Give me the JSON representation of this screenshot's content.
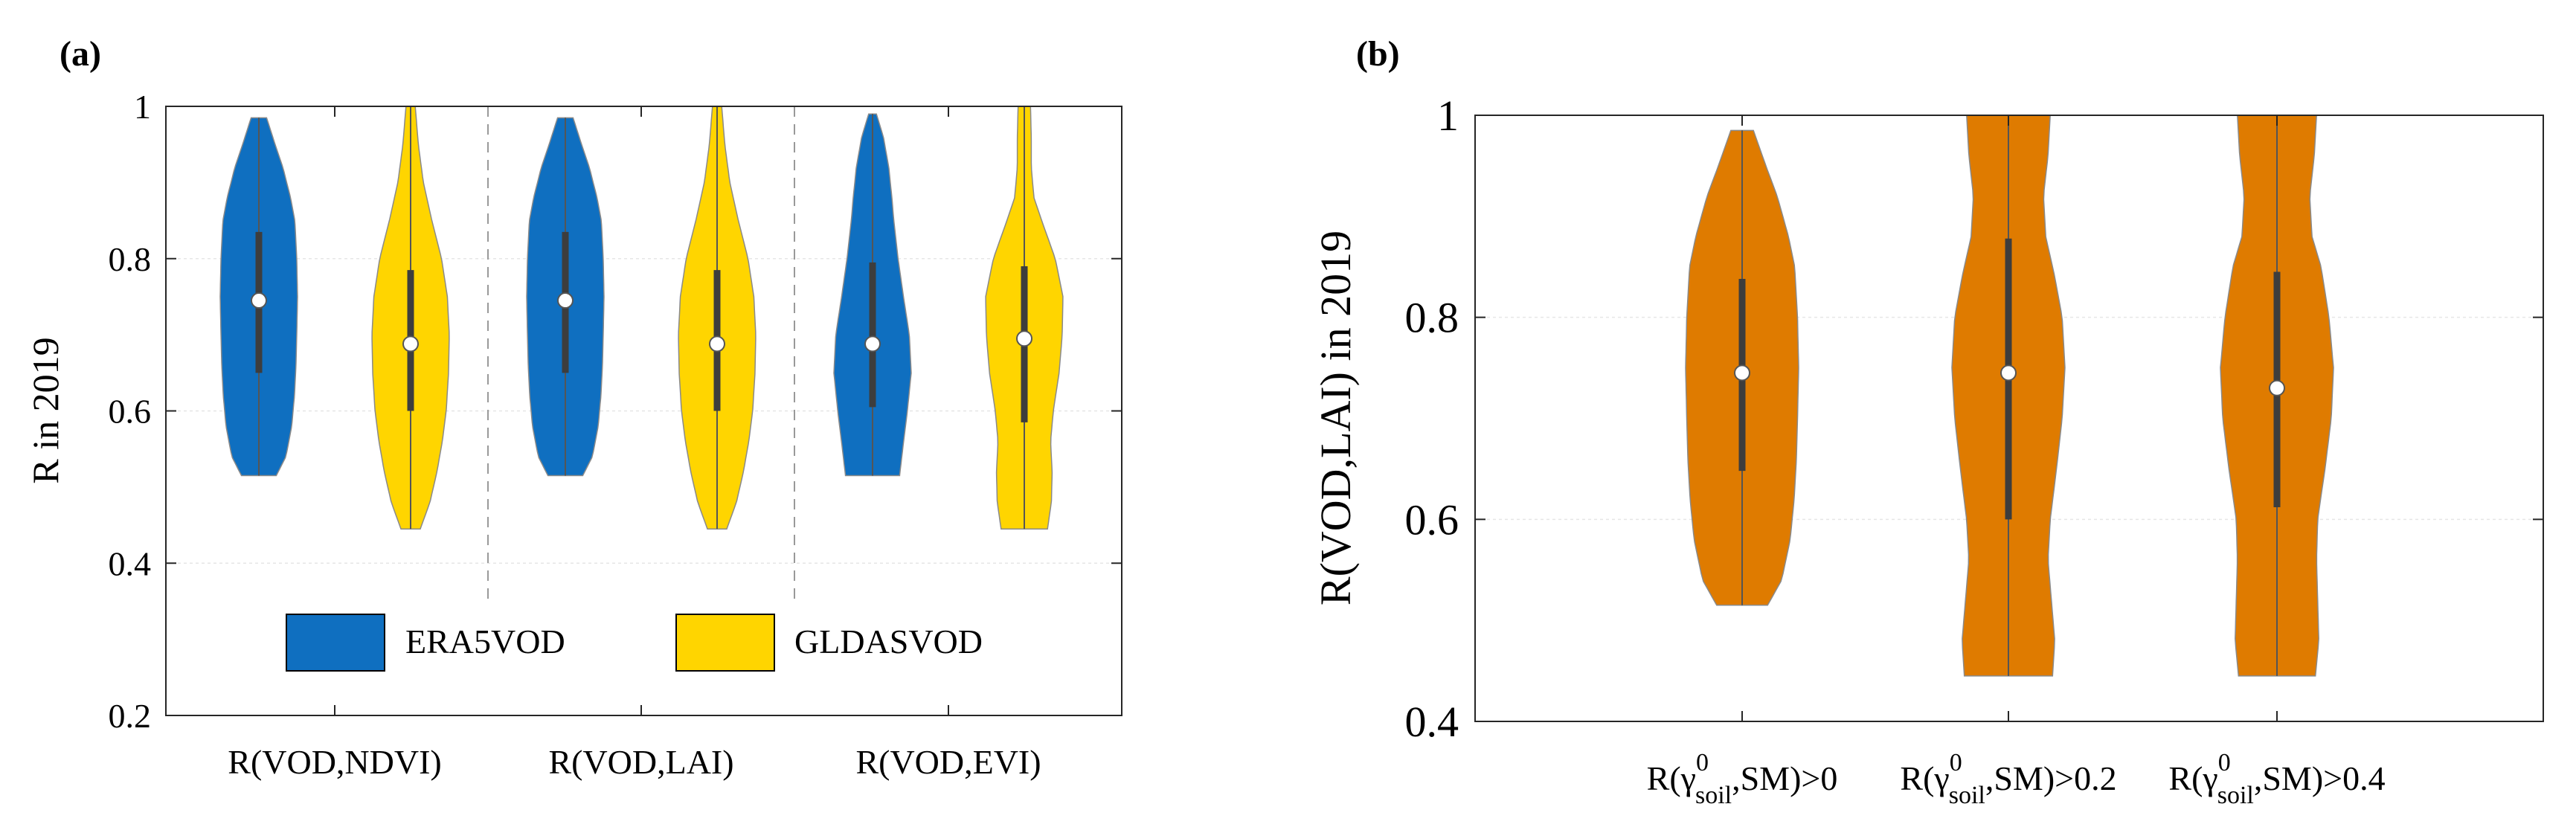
{
  "colors": {
    "era5": "#0f6fc0",
    "gldas": "#ffd500",
    "orange": "#df7b00",
    "box": "#3d3d3d",
    "median_dot": "#ffffff",
    "grid": "#e6e6e6",
    "axis": "#262626"
  },
  "chart_data": [
    {
      "panel_label": "(a)",
      "type": "violin",
      "ylabel": "R in 2019",
      "ylim": [
        0.2,
        1.0
      ],
      "yticks": [
        "0.2",
        "0.4",
        "0.6",
        "0.8",
        "1"
      ],
      "groups": [
        "R(VOD,NDVI)",
        "R(VOD,LAI)",
        "R(VOD,EVI)"
      ],
      "legend": [
        "ERA5VOD",
        "GLDASVOD"
      ],
      "legend_position": "bottom-center",
      "series": [
        {
          "name": "ERA5VOD",
          "violins": [
            {
              "min": 0.515,
              "q1": 0.65,
              "median": 0.745,
              "q3": 0.835,
              "max": 0.985,
              "shape": [
                [
                  0.515,
                  0.45
                ],
                [
                  0.54,
                  0.7
                ],
                [
                  0.58,
                  0.85
                ],
                [
                  0.62,
                  0.92
                ],
                [
                  0.66,
                  0.96
                ],
                [
                  0.7,
                  0.98
                ],
                [
                  0.75,
                  1.0
                ],
                [
                  0.8,
                  0.98
                ],
                [
                  0.85,
                  0.93
                ],
                [
                  0.88,
                  0.82
                ],
                [
                  0.92,
                  0.62
                ],
                [
                  0.95,
                  0.42
                ],
                [
                  0.985,
                  0.2
                ]
              ]
            },
            {
              "min": 0.515,
              "q1": 0.65,
              "median": 0.745,
              "q3": 0.835,
              "max": 0.985,
              "shape": [
                [
                  0.515,
                  0.45
                ],
                [
                  0.54,
                  0.7
                ],
                [
                  0.58,
                  0.85
                ],
                [
                  0.62,
                  0.92
                ],
                [
                  0.66,
                  0.96
                ],
                [
                  0.7,
                  0.98
                ],
                [
                  0.75,
                  1.0
                ],
                [
                  0.8,
                  0.98
                ],
                [
                  0.85,
                  0.93
                ],
                [
                  0.88,
                  0.82
                ],
                [
                  0.92,
                  0.62
                ],
                [
                  0.95,
                  0.42
                ],
                [
                  0.985,
                  0.2
                ]
              ]
            },
            {
              "min": 0.515,
              "q1": 0.605,
              "median": 0.688,
              "q3": 0.795,
              "max": 0.99,
              "shape": [
                [
                  0.515,
                  0.7
                ],
                [
                  0.55,
                  0.78
                ],
                [
                  0.6,
                  0.9
                ],
                [
                  0.65,
                  1.0
                ],
                [
                  0.7,
                  0.95
                ],
                [
                  0.75,
                  0.8
                ],
                [
                  0.8,
                  0.66
                ],
                [
                  0.85,
                  0.55
                ],
                [
                  0.88,
                  0.5
                ],
                [
                  0.92,
                  0.42
                ],
                [
                  0.96,
                  0.28
                ],
                [
                  0.99,
                  0.1
                ]
              ]
            }
          ]
        },
        {
          "name": "GLDASVOD",
          "violins": [
            {
              "min": 0.445,
              "q1": 0.6,
              "median": 0.688,
              "q3": 0.785,
              "max": 1.0,
              "shape": [
                [
                  0.445,
                  0.25
                ],
                [
                  0.48,
                  0.5
                ],
                [
                  0.52,
                  0.68
                ],
                [
                  0.56,
                  0.82
                ],
                [
                  0.6,
                  0.92
                ],
                [
                  0.65,
                  0.98
                ],
                [
                  0.7,
                  1.0
                ],
                [
                  0.75,
                  0.95
                ],
                [
                  0.8,
                  0.8
                ],
                [
                  0.85,
                  0.55
                ],
                [
                  0.9,
                  0.33
                ],
                [
                  0.95,
                  0.2
                ],
                [
                  1.0,
                  0.12
                ]
              ]
            },
            {
              "min": 0.445,
              "q1": 0.6,
              "median": 0.688,
              "q3": 0.785,
              "max": 1.0,
              "shape": [
                [
                  0.445,
                  0.25
                ],
                [
                  0.48,
                  0.5
                ],
                [
                  0.52,
                  0.68
                ],
                [
                  0.56,
                  0.82
                ],
                [
                  0.6,
                  0.92
                ],
                [
                  0.65,
                  0.98
                ],
                [
                  0.7,
                  1.0
                ],
                [
                  0.75,
                  0.95
                ],
                [
                  0.8,
                  0.8
                ],
                [
                  0.85,
                  0.55
                ],
                [
                  0.9,
                  0.33
                ],
                [
                  0.95,
                  0.2
                ],
                [
                  1.0,
                  0.12
                ]
              ]
            },
            {
              "min": 0.445,
              "q1": 0.585,
              "median": 0.695,
              "q3": 0.79,
              "max": 1.0,
              "shape": [
                [
                  0.445,
                  0.6
                ],
                [
                  0.48,
                  0.7
                ],
                [
                  0.52,
                  0.72
                ],
                [
                  0.56,
                  0.68
                ],
                [
                  0.6,
                  0.75
                ],
                [
                  0.65,
                  0.9
                ],
                [
                  0.7,
                  0.98
                ],
                [
                  0.75,
                  1.0
                ],
                [
                  0.8,
                  0.8
                ],
                [
                  0.85,
                  0.45
                ],
                [
                  0.88,
                  0.25
                ],
                [
                  0.92,
                  0.18
                ],
                [
                  0.96,
                  0.18
                ],
                [
                  1.0,
                  0.16
                ]
              ]
            }
          ]
        }
      ]
    },
    {
      "panel_label": "(b)",
      "type": "violin",
      "ylabel": "R(VOD,LAI) in 2019",
      "ylim": [
        0.4,
        1.0
      ],
      "yticks": [
        "0.4",
        "0.6",
        "0.8",
        "1"
      ],
      "categories": [
        {
          "prefix": "R(γ",
          "sup": "0",
          "sub": "soil",
          "suffix": ",SM)>0"
        },
        {
          "prefix": "R(γ",
          "sup": "0",
          "sub": "soil",
          "suffix": ",SM)>0.2"
        },
        {
          "prefix": "R(γ",
          "sup": "0",
          "sub": "soil",
          "suffix": ",SM)>0.4"
        }
      ],
      "violins": [
        {
          "min": 0.515,
          "q1": 0.648,
          "median": 0.745,
          "q3": 0.838,
          "max": 0.985,
          "shape": [
            [
              0.515,
              0.45
            ],
            [
              0.54,
              0.7
            ],
            [
              0.58,
              0.85
            ],
            [
              0.62,
              0.92
            ],
            [
              0.66,
              0.96
            ],
            [
              0.7,
              0.98
            ],
            [
              0.75,
              1.0
            ],
            [
              0.8,
              0.98
            ],
            [
              0.85,
              0.93
            ],
            [
              0.88,
              0.82
            ],
            [
              0.92,
              0.62
            ],
            [
              0.95,
              0.42
            ],
            [
              0.985,
              0.2
            ]
          ]
        },
        {
          "min": 0.445,
          "q1": 0.6,
          "median": 0.745,
          "q3": 0.878,
          "max": 1.0,
          "shape": [
            [
              0.445,
              0.78
            ],
            [
              0.48,
              0.82
            ],
            [
              0.52,
              0.76
            ],
            [
              0.56,
              0.7
            ],
            [
              0.6,
              0.74
            ],
            [
              0.65,
              0.85
            ],
            [
              0.7,
              0.95
            ],
            [
              0.75,
              1.0
            ],
            [
              0.8,
              0.95
            ],
            [
              0.84,
              0.82
            ],
            [
              0.88,
              0.66
            ],
            [
              0.92,
              0.62
            ],
            [
              0.96,
              0.7
            ],
            [
              1.0,
              0.74
            ]
          ]
        },
        {
          "min": 0.445,
          "q1": 0.612,
          "median": 0.73,
          "q3": 0.845,
          "max": 1.0,
          "shape": [
            [
              0.445,
              0.68
            ],
            [
              0.48,
              0.74
            ],
            [
              0.52,
              0.72
            ],
            [
              0.56,
              0.7
            ],
            [
              0.6,
              0.72
            ],
            [
              0.65,
              0.85
            ],
            [
              0.7,
              0.96
            ],
            [
              0.75,
              1.0
            ],
            [
              0.8,
              0.92
            ],
            [
              0.85,
              0.78
            ],
            [
              0.88,
              0.62
            ],
            [
              0.92,
              0.58
            ],
            [
              0.96,
              0.66
            ],
            [
              1.0,
              0.7
            ]
          ]
        }
      ]
    }
  ]
}
